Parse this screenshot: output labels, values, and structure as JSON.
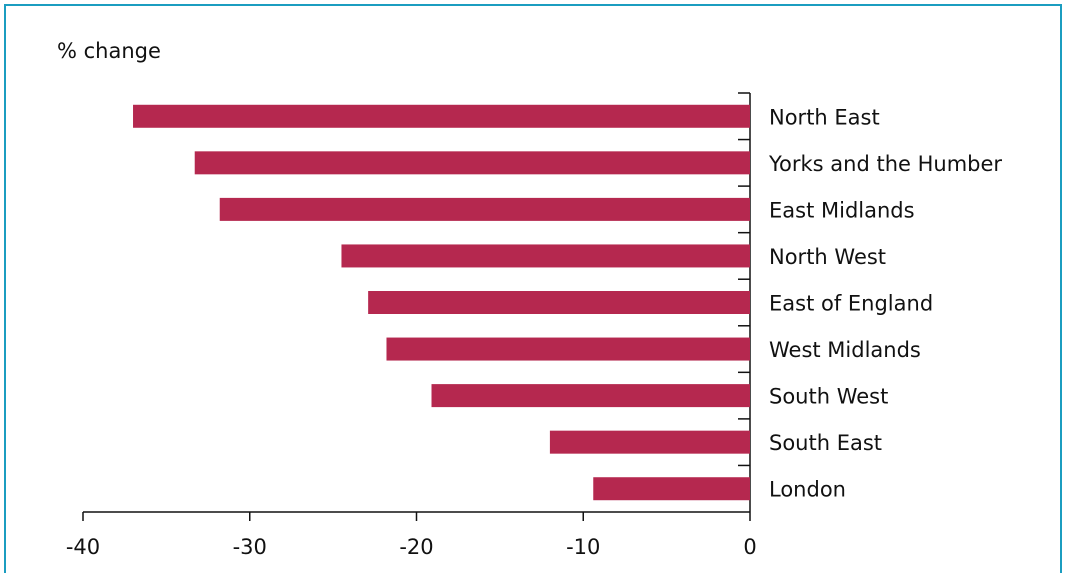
{
  "chart_data": {
    "type": "bar",
    "orientation": "horizontal",
    "title": "% change",
    "categories": [
      "North East",
      "Yorks and the Humber",
      "East Midlands",
      "North West",
      "East of England",
      "West Midlands",
      "South West",
      "South East",
      "London"
    ],
    "values": [
      -37.0,
      -33.3,
      -31.8,
      -24.5,
      -22.9,
      -21.8,
      -19.1,
      -12.0,
      -9.4
    ],
    "color": "#b5284f",
    "xlim": [
      -40,
      0
    ],
    "xticks": [
      -40,
      -30,
      -20,
      -10,
      0
    ],
    "grid": false
  }
}
